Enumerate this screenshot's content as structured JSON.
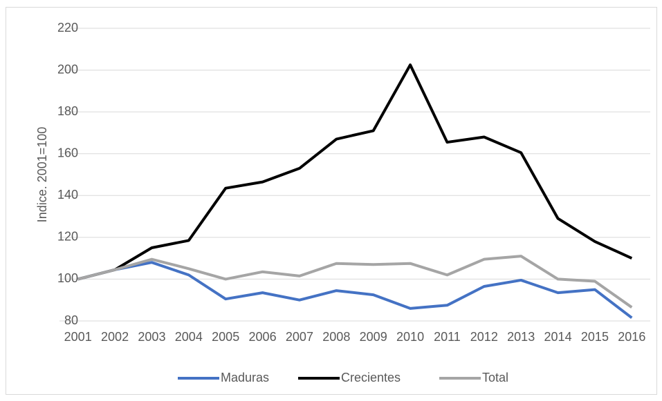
{
  "chart_data": {
    "type": "line",
    "y_label": "Indice. 2001=100",
    "categories": [
      "2001",
      "2002",
      "2003",
      "2004",
      "2005",
      "2006",
      "2007",
      "2008",
      "2009",
      "2010",
      "2011",
      "2012",
      "2013",
      "2014",
      "2015",
      "2016"
    ],
    "series": [
      {
        "name": "Maduras",
        "color": "#4472c4",
        "values": [
          100,
          104.5,
          108,
          102,
          90.5,
          93.5,
          90,
          94.5,
          92.5,
          86,
          87.5,
          96.5,
          99.5,
          93.5,
          95,
          81.5
        ]
      },
      {
        "name": "Crecientes",
        "color": "#000000",
        "values": [
          100,
          104.5,
          115,
          118.5,
          143.5,
          146.5,
          153,
          167,
          171,
          202.5,
          165.5,
          168,
          160.5,
          129,
          118,
          110
        ]
      },
      {
        "name": "Total",
        "color": "#a5a5a5",
        "values": [
          100,
          104.5,
          109.5,
          105,
          100,
          103.5,
          101.5,
          107.5,
          107,
          107.5,
          102,
          109.5,
          111,
          100,
          99,
          86.5
        ]
      }
    ],
    "ylim": [
      80,
      220
    ],
    "yticks": [
      80,
      100,
      120,
      140,
      160,
      180,
      200,
      220
    ],
    "grid": true,
    "legend": "bottom"
  }
}
